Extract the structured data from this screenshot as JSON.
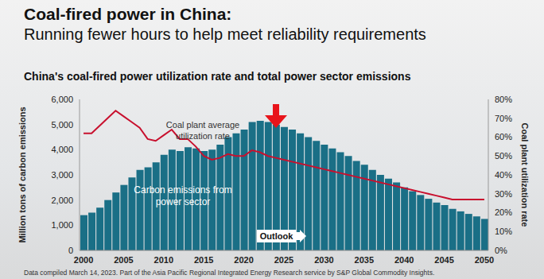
{
  "title": "Coal-fired power in China:",
  "subtitle": "Running fewer hours to help meet reliability requirements",
  "footnote": "Data compiled March 14, 2023. Part of the Asia Pacific Regional Integrated Energy Research service by S&P Global Commodity Insights.",
  "chart_data": {
    "type": "bar",
    "title": "China's coal-fired power utilization rate and total power sector emissions",
    "y_label": "Million tons of carbon emissions",
    "y2_label": "Coal plant utilization rate",
    "x": [
      2000,
      2001,
      2002,
      2003,
      2004,
      2005,
      2006,
      2007,
      2008,
      2009,
      2010,
      2011,
      2012,
      2013,
      2014,
      2015,
      2016,
      2017,
      2018,
      2019,
      2020,
      2021,
      2022,
      2023,
      2024,
      2025,
      2026,
      2027,
      2028,
      2029,
      2030,
      2031,
      2032,
      2033,
      2034,
      2035,
      2036,
      2037,
      2038,
      2039,
      2040,
      2041,
      2042,
      2043,
      2044,
      2045,
      2046,
      2047,
      2048,
      2049,
      2050
    ],
    "xlim": [
      1999.5,
      2050.5
    ],
    "xticks": [
      2000,
      2005,
      2010,
      2015,
      2020,
      2025,
      2030,
      2035,
      2040,
      2045,
      2050
    ],
    "ylim": [
      0,
      6000
    ],
    "yticks": [
      0,
      {
        "value": 1000,
        "label": "1,000"
      },
      {
        "value": 2000,
        "label": "2,000"
      },
      {
        "value": 3000,
        "label": "3,000"
      },
      {
        "value": 4000,
        "label": "4,000"
      },
      {
        "value": 5000,
        "label": "5,000"
      },
      {
        "value": 6000,
        "label": "6,000"
      }
    ],
    "y2lim": [
      0,
      80
    ],
    "y2ticks": [
      {
        "value": 0,
        "label": "0%"
      },
      {
        "value": 10,
        "label": "10%"
      },
      {
        "value": 20,
        "label": "20%"
      },
      {
        "value": 30,
        "label": "30%"
      },
      {
        "value": 40,
        "label": "40%"
      },
      {
        "value": 50,
        "label": "50%"
      },
      {
        "value": 60,
        "label": "60%"
      },
      {
        "value": 70,
        "label": "70%"
      },
      {
        "value": 80,
        "label": "80%"
      }
    ],
    "grid": false,
    "series": [
      {
        "name": "Carbon emissions from power sector",
        "type": "bar",
        "color": "#1a6f86",
        "values": [
          1400,
          1500,
          1700,
          2000,
          2300,
          2600,
          2900,
          3200,
          3300,
          3500,
          3800,
          4000,
          3950,
          4100,
          4050,
          3950,
          4000,
          4200,
          4500,
          4650,
          4800,
          5100,
          5150,
          5100,
          5000,
          4900,
          4800,
          4650,
          4500,
          4350,
          4200,
          4050,
          3900,
          3750,
          3550,
          3400,
          3200,
          3000,
          2850,
          2700,
          2500,
          2350,
          2200,
          2050,
          1900,
          1800,
          1650,
          1550,
          1450,
          1350,
          1250
        ]
      },
      {
        "name": "Coal plant average utilization rate",
        "type": "line",
        "axis": "y2",
        "color": "#c8102e",
        "values": [
          62,
          62,
          66,
          70,
          74,
          71,
          68,
          65,
          59,
          58,
          61,
          64,
          59,
          59,
          55,
          50,
          48,
          49,
          51,
          50,
          50,
          53,
          52,
          50,
          49,
          48,
          47,
          46,
          45,
          44,
          43,
          42,
          41,
          40,
          39,
          38,
          37,
          36,
          35,
          34,
          33,
          32,
          31,
          30,
          29,
          28,
          27,
          27,
          27,
          27,
          27
        ]
      }
    ],
    "annotations": [
      {
        "text": "Outlook",
        "x": 2022
      }
    ]
  }
}
